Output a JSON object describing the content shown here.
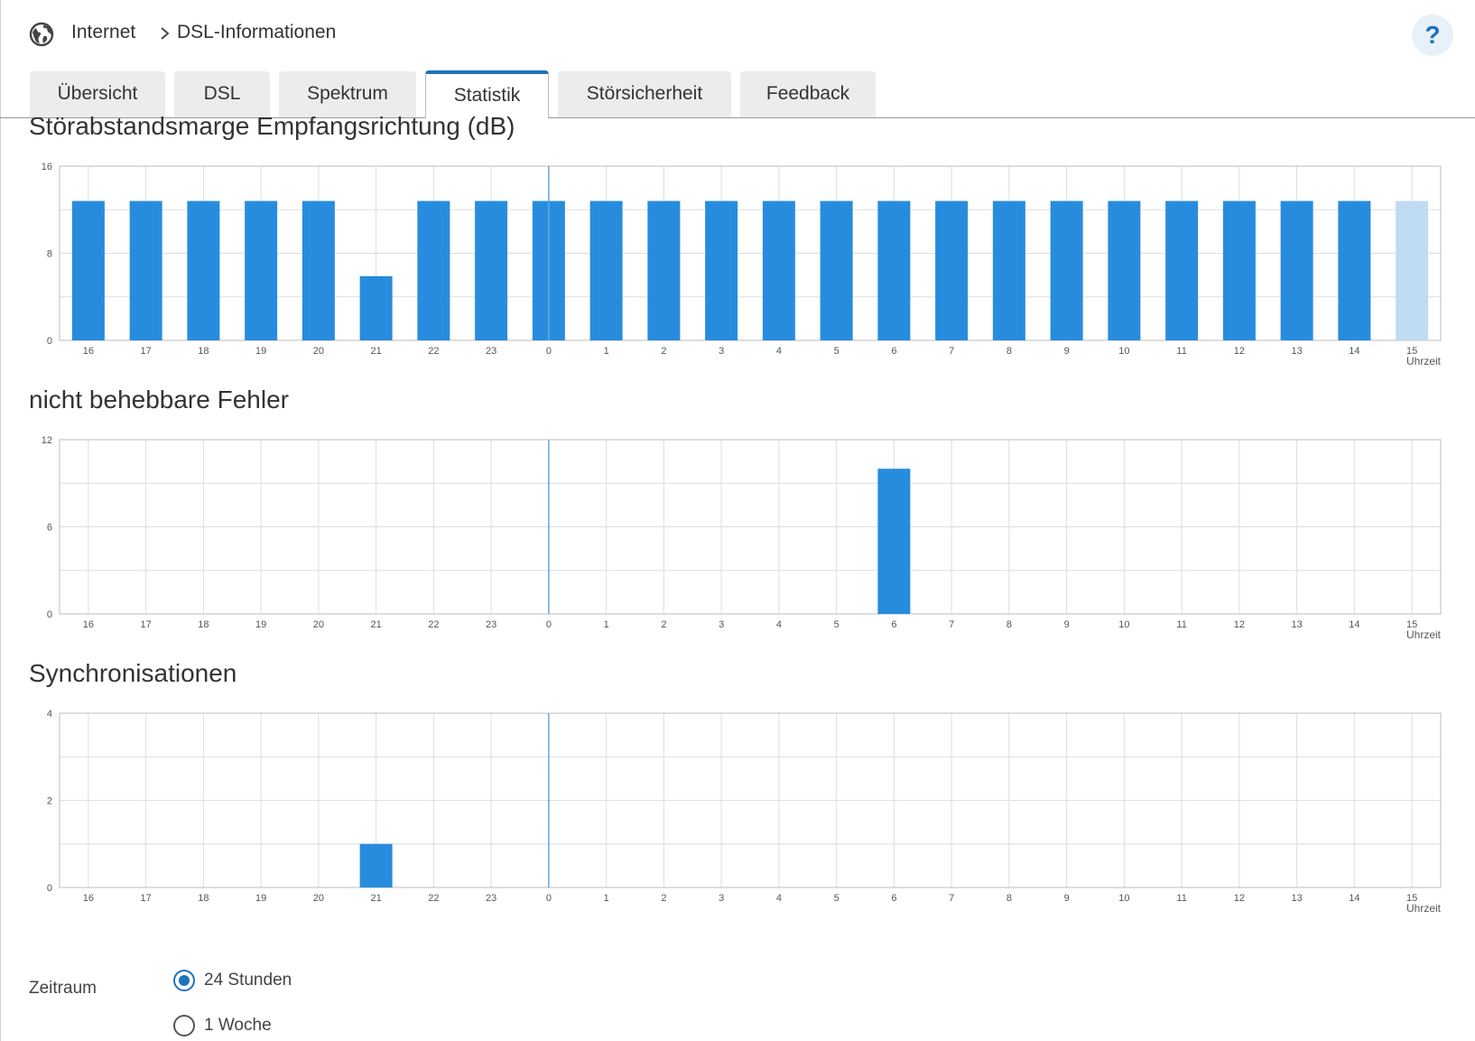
{
  "breadcrumb": {
    "items": [
      "Internet",
      "DSL-Informationen"
    ],
    "icon": "globe-icon"
  },
  "help": {
    "label": "?"
  },
  "tabs": [
    {
      "label": "Übersicht",
      "active": false
    },
    {
      "label": "DSL",
      "active": false
    },
    {
      "label": "Spektrum",
      "active": false
    },
    {
      "label": "Statistik",
      "active": true
    },
    {
      "label": "Störsicherheit",
      "active": false
    },
    {
      "label": "Feedback",
      "active": false
    }
  ],
  "colors": {
    "bar": "#288cde",
    "bar_pending": "#c0dcf2",
    "grid": "#dedede",
    "axis": "#bdbdbd",
    "marker": "#6aa6d8"
  },
  "chart_data": [
    {
      "type": "bar",
      "title": "Störabstandsmarge Empfangsrichtung (dB)",
      "categories": [
        "16",
        "17",
        "18",
        "19",
        "20",
        "21",
        "22",
        "23",
        "0",
        "1",
        "2",
        "3",
        "4",
        "5",
        "6",
        "7",
        "8",
        "9",
        "10",
        "11",
        "12",
        "13",
        "14",
        "15"
      ],
      "values": [
        12.8,
        12.8,
        12.8,
        12.8,
        12.8,
        5.9,
        12.8,
        12.8,
        12.8,
        12.8,
        12.8,
        12.8,
        12.8,
        12.8,
        12.8,
        12.8,
        12.8,
        12.8,
        12.8,
        12.8,
        12.8,
        12.8,
        12.8,
        12.8
      ],
      "pending_last": true,
      "xlabel": "Uhrzeit",
      "ylim": [
        0,
        16
      ],
      "yticks": [
        0,
        8,
        16
      ],
      "grid": true,
      "marker_at": "0"
    },
    {
      "type": "bar",
      "title": "nicht behebbare Fehler",
      "categories": [
        "16",
        "17",
        "18",
        "19",
        "20",
        "21",
        "22",
        "23",
        "0",
        "1",
        "2",
        "3",
        "4",
        "5",
        "6",
        "7",
        "8",
        "9",
        "10",
        "11",
        "12",
        "13",
        "14",
        "15"
      ],
      "values": [
        0,
        0,
        0,
        0,
        0,
        0,
        0,
        0,
        0,
        0,
        0,
        0,
        0,
        0,
        10,
        0,
        0,
        0,
        0,
        0,
        0,
        0,
        0,
        0
      ],
      "pending_last": false,
      "xlabel": "Uhrzeit",
      "ylim": [
        0,
        12
      ],
      "yticks": [
        0,
        6,
        12
      ],
      "grid": true,
      "marker_at": "0"
    },
    {
      "type": "bar",
      "title": "Synchronisationen",
      "categories": [
        "16",
        "17",
        "18",
        "19",
        "20",
        "21",
        "22",
        "23",
        "0",
        "1",
        "2",
        "3",
        "4",
        "5",
        "6",
        "7",
        "8",
        "9",
        "10",
        "11",
        "12",
        "13",
        "14",
        "15"
      ],
      "values": [
        0,
        0,
        0,
        0,
        0,
        1,
        0,
        0,
        0,
        0,
        0,
        0,
        0,
        0,
        0,
        0,
        0,
        0,
        0,
        0,
        0,
        0,
        0,
        0
      ],
      "pending_last": false,
      "xlabel": "Uhrzeit",
      "ylim": [
        0,
        4
      ],
      "yticks": [
        0,
        2,
        4
      ],
      "grid": true,
      "marker_at": "0"
    }
  ],
  "zeitraum": {
    "label": "Zeitraum",
    "options": [
      {
        "label": "24 Stunden",
        "checked": true
      },
      {
        "label": "1 Woche",
        "checked": false
      }
    ]
  }
}
